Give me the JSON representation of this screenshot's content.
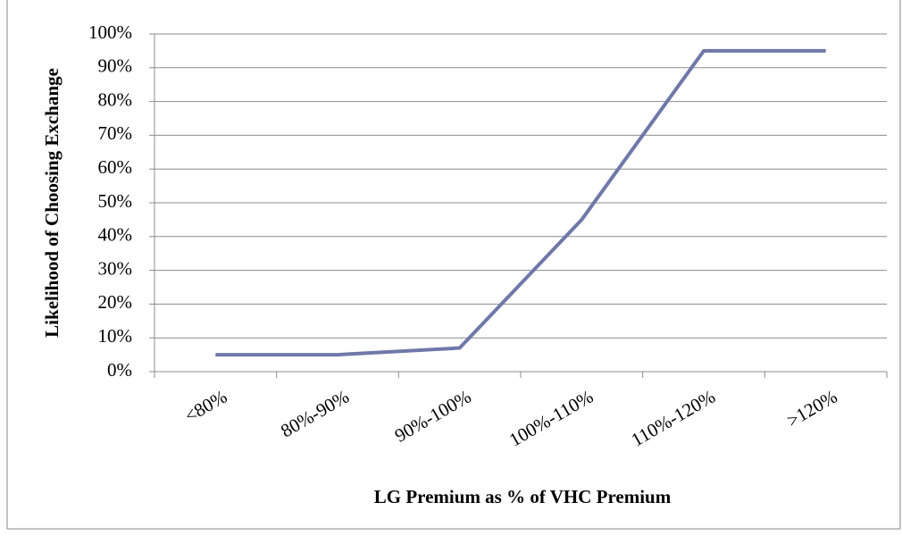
{
  "chart_data": {
    "type": "line",
    "x_label": "LG Premium as % of VHC Premium",
    "y_label": "Likelihood of Choosing Exchange",
    "categories": [
      "<80%",
      "80%-90%",
      "90%-100%",
      "100%-110%",
      "110%-120%",
      ">120%"
    ],
    "series": [
      {
        "color": "#6f78a8",
        "values": [
          5,
          5,
          7,
          45,
          95,
          95
        ]
      }
    ],
    "ylim": [
      0,
      100
    ],
    "yticks": [
      {
        "value": 0,
        "label": "0%"
      },
      {
        "value": 10,
        "label": "10%"
      },
      {
        "value": 20,
        "label": "20%"
      },
      {
        "value": 30,
        "label": "30%"
      },
      {
        "value": 40,
        "label": "40%"
      },
      {
        "value": 50,
        "label": "50%"
      },
      {
        "value": 60,
        "label": "60%"
      },
      {
        "value": 70,
        "label": "70%"
      },
      {
        "value": 80,
        "label": "80%"
      },
      {
        "value": 90,
        "label": "90%"
      },
      {
        "value": 100,
        "label": "100%"
      }
    ],
    "grid": true
  }
}
